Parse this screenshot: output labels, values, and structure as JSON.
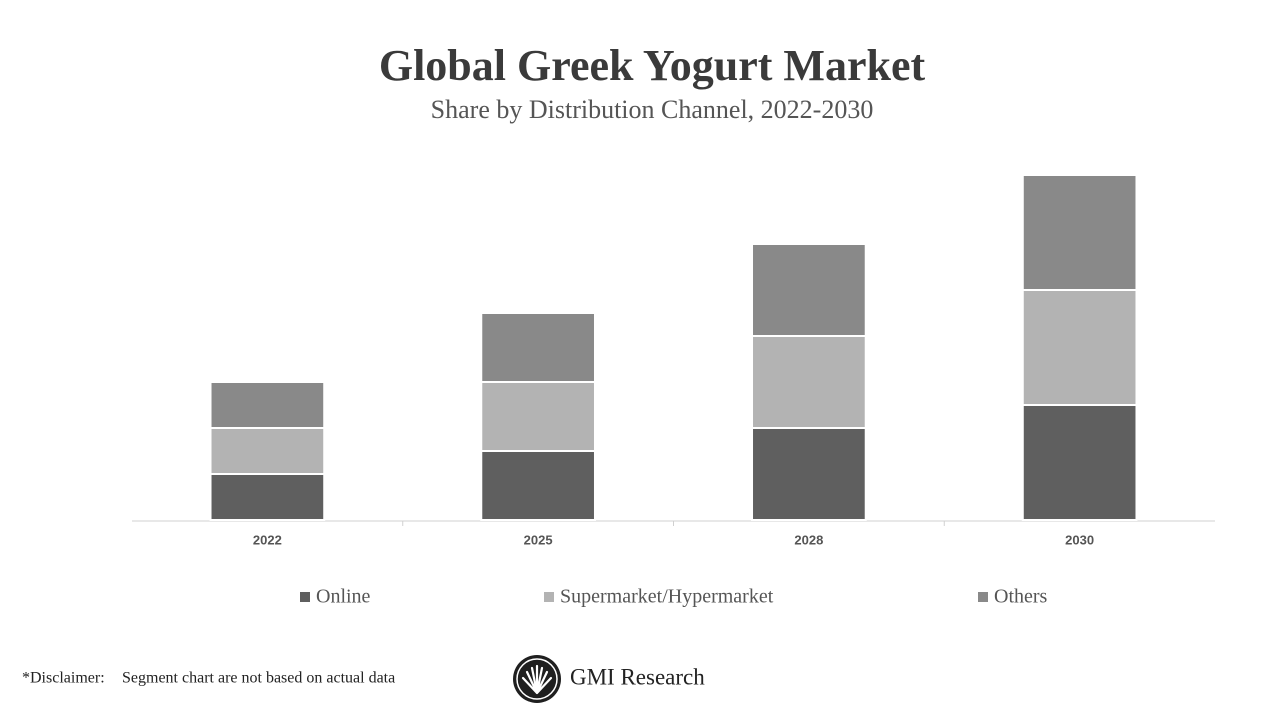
{
  "chart_data": {
    "type": "stacked_bar",
    "title": "Global Greek Yogurt Market",
    "subtitle": "Share by Distribution Channel, 2022-2030",
    "categories": [
      "2022",
      "2025",
      "2028",
      "2030"
    ],
    "series": [
      {
        "name": "Online",
        "color": "#5f5f5f",
        "values": [
          2,
          3,
          4,
          5
        ]
      },
      {
        "name": "Supermarket/Hypermarket",
        "color": "#b3b3b3",
        "values": [
          2,
          3,
          4,
          5
        ]
      },
      {
        "name": "Others",
        "color": "#898989",
        "values": [
          2,
          3,
          4,
          5
        ]
      }
    ],
    "legend": "bottom"
  },
  "footer": {
    "disclaimer_label": "*Disclaimer:",
    "disclaimer": "Segment chart are not based on actual data",
    "brand": "GMI Research"
  }
}
